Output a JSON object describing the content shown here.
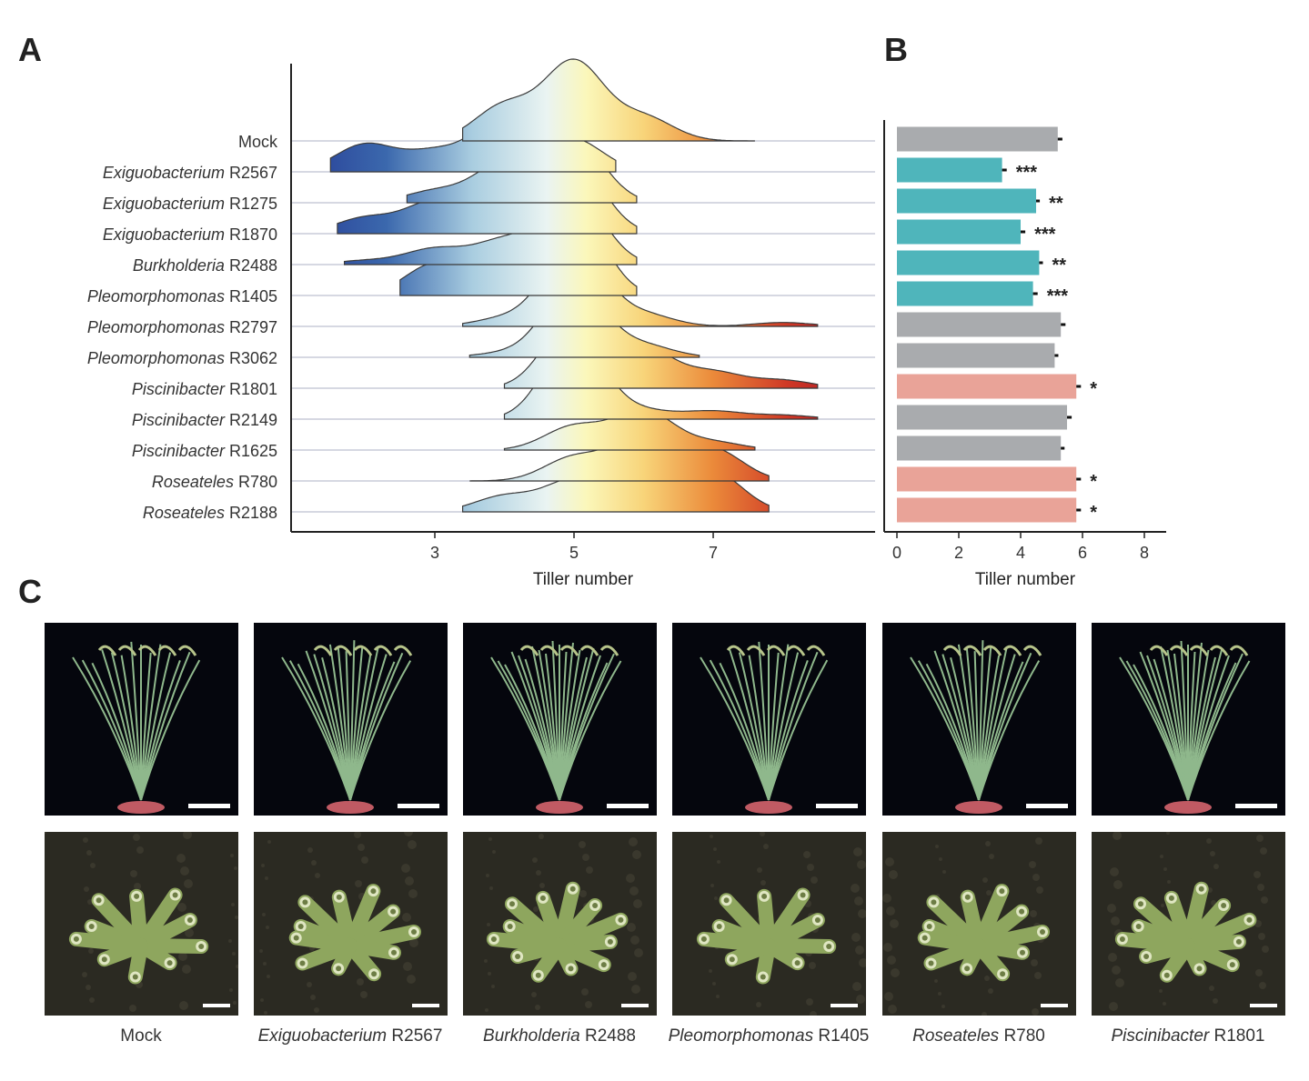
{
  "panels": {
    "a": "A",
    "b": "B",
    "c": "C"
  },
  "chart_data": [
    {
      "type": "ridgeline",
      "xlabel": "Tiller number",
      "xticks": [
        "3",
        "5",
        "7"
      ],
      "xlim": [
        1.0,
        9.3
      ],
      "categories": [
        {
          "genus": "",
          "strain": "Mock"
        },
        {
          "genus": "Exiguobacterium",
          "strain": "R2567"
        },
        {
          "genus": "Exiguobacterium",
          "strain": "R1275"
        },
        {
          "genus": "Exiguobacterium",
          "strain": "R1870"
        },
        {
          "genus": "Burkholderia",
          "strain": "R2488"
        },
        {
          "genus": "Pleomorphomonas",
          "strain": "R1405"
        },
        {
          "genus": "Pleomorphomonas",
          "strain": "R2797"
        },
        {
          "genus": "Pleomorphomonas",
          "strain": "R3062"
        },
        {
          "genus": "Piscinibacter",
          "strain": "R1801"
        },
        {
          "genus": "Piscinibacter",
          "strain": "R2149"
        },
        {
          "genus": "Piscinibacter",
          "strain": "R1625"
        },
        {
          "genus": "Roseateles",
          "strain": "R780"
        },
        {
          "genus": "Roseateles",
          "strain": "R2188"
        }
      ],
      "densities": [
        {
          "min": 3.4,
          "max": 7.6,
          "peaks": [
            [
              4,
              0.45
            ],
            [
              5,
              1.0
            ],
            [
              6,
              0.3
            ]
          ]
        },
        {
          "min": 1.5,
          "max": 5.6,
          "peaks": [
            [
              2,
              0.35
            ],
            [
              3,
              0.25
            ],
            [
              4,
              0.7
            ],
            [
              5,
              0.4
            ]
          ]
        },
        {
          "min": 2.6,
          "max": 5.9,
          "peaks": [
            [
              3,
              0.15
            ],
            [
              4,
              0.5
            ],
            [
              5,
              0.8
            ]
          ]
        },
        {
          "min": 1.6,
          "max": 5.9,
          "peaks": [
            [
              2,
              0.2
            ],
            [
              3,
              0.4
            ],
            [
              4,
              0.5
            ],
            [
              5,
              0.9
            ]
          ]
        },
        {
          "min": 1.7,
          "max": 5.9,
          "peaks": [
            [
              2,
              0.05
            ],
            [
              3,
              0.2
            ],
            [
              4,
              0.3
            ],
            [
              5,
              0.9
            ]
          ]
        },
        {
          "min": 2.5,
          "max": 5.9,
          "peaks": [
            [
              3,
              0.4
            ],
            [
              4,
              0.4
            ],
            [
              5,
              1.1
            ]
          ]
        },
        {
          "min": 3.4,
          "max": 8.5,
          "peaks": [
            [
              4,
              0.1
            ],
            [
              5,
              1.05
            ],
            [
              6,
              0.15
            ],
            [
              8,
              0.05
            ]
          ]
        },
        {
          "min": 3.5,
          "max": 6.8,
          "peaks": [
            [
              4,
              0.05
            ],
            [
              5,
              0.95
            ],
            [
              6,
              0.15
            ]
          ]
        },
        {
          "min": 4.0,
          "max": 8.5,
          "peaks": [
            [
              5,
              0.9
            ],
            [
              6,
              0.5
            ],
            [
              7,
              0.2
            ],
            [
              8,
              0.1
            ]
          ]
        },
        {
          "min": 4.0,
          "max": 8.5,
          "peaks": [
            [
              5,
              1.05
            ],
            [
              6,
              0.1
            ],
            [
              7,
              0.1
            ],
            [
              8,
              0.05
            ]
          ]
        },
        {
          "min": 4.0,
          "max": 7.6,
          "peaks": [
            [
              5,
              0.3
            ],
            [
              6,
              0.5
            ],
            [
              7,
              0.1
            ]
          ]
        },
        {
          "min": 3.5,
          "max": 7.8,
          "peaks": [
            [
              5,
              0.3
            ],
            [
              6,
              0.6
            ],
            [
              7,
              0.4
            ]
          ]
        },
        {
          "min": 3.4,
          "max": 7.8,
          "peaks": [
            [
              4,
              0.2
            ],
            [
              5,
              0.4
            ],
            [
              6,
              0.4
            ],
            [
              7,
              0.5
            ]
          ]
        }
      ]
    },
    {
      "type": "bar",
      "orientation": "horizontal",
      "xlabel": "Tiller number",
      "xticks": [
        "0",
        "2",
        "4",
        "6",
        "8"
      ],
      "xlim": [
        0,
        8
      ],
      "values": [
        5.2,
        3.4,
        4.5,
        4.0,
        4.6,
        4.4,
        5.3,
        5.1,
        5.8,
        5.5,
        5.3,
        5.8,
        5.8
      ],
      "errors": [
        0.15,
        0.15,
        0.12,
        0.15,
        0.12,
        0.15,
        0.15,
        0.12,
        0.15,
        0.15,
        0.12,
        0.15,
        0.15
      ],
      "significance": [
        "",
        "***",
        "**",
        "***",
        "**",
        "***",
        "",
        "",
        "*",
        "",
        "",
        "*",
        "*"
      ],
      "groups": [
        "neutral",
        "decrease",
        "decrease",
        "decrease",
        "decrease",
        "decrease",
        "neutral",
        "neutral",
        "increase",
        "neutral",
        "neutral",
        "increase",
        "increase"
      ],
      "colors": {
        "neutral": "#a9abae",
        "decrease": "#4fb5bb",
        "increase": "#e9a398"
      }
    }
  ],
  "photos": [
    {
      "genus": "",
      "strain": "Mock"
    },
    {
      "genus": "Exiguobacterium",
      "strain": "R2567"
    },
    {
      "genus": "Burkholderia",
      "strain": "R2488"
    },
    {
      "genus": "Pleomorphomonas",
      "strain": "R1405"
    },
    {
      "genus": "Roseateles",
      "strain": "R780"
    },
    {
      "genus": "Piscinibacter",
      "strain": "R1801"
    }
  ]
}
